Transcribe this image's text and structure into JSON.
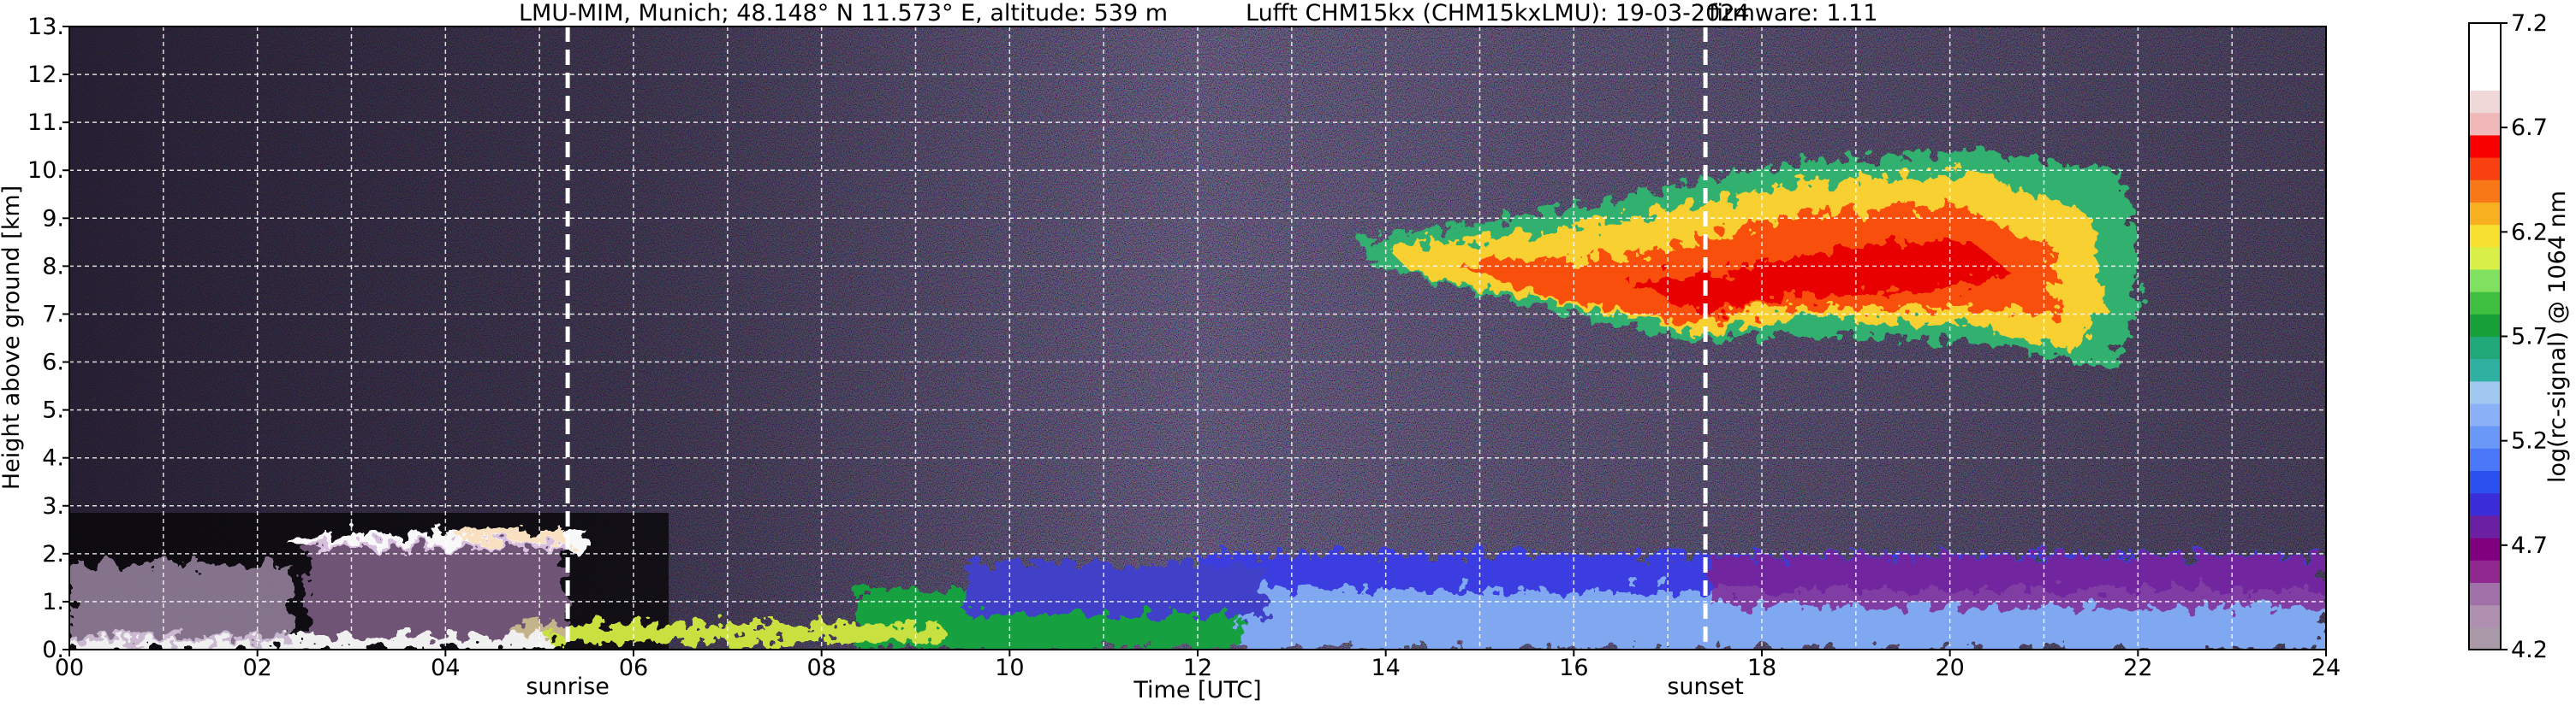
{
  "chart_data": {
    "type": "heatmap",
    "title_segments": [
      "LMU-MIM, Munich; 48.148° N 11.573° E, altitude: 539 m",
      "Lufft CHM15kx (CHM15kxLMU): 19-03-2024",
      "firmware: 1.11"
    ],
    "x_label": "Time [UTC]",
    "y_label": "Height above ground [km]",
    "xlim": [
      0,
      24
    ],
    "ylim": [
      0,
      13
    ],
    "xticks": [
      {
        "value": 0,
        "label": "00"
      },
      {
        "value": 2,
        "label": "02"
      },
      {
        "value": 4,
        "label": "04"
      },
      {
        "value": 6,
        "label": "06"
      },
      {
        "value": 8,
        "label": "08"
      },
      {
        "value": 10,
        "label": "10"
      },
      {
        "value": 12,
        "label": "12"
      },
      14,
      16,
      18,
      20,
      22,
      24
    ],
    "x_minor_ticks": [
      1,
      3,
      5,
      7,
      9,
      11,
      13,
      15,
      17,
      19,
      21,
      23
    ],
    "yticks": [
      {
        "value": 0,
        "label": "0."
      },
      {
        "value": 1,
        "label": "1."
      },
      {
        "value": 2,
        "label": "2."
      },
      {
        "value": 3,
        "label": "3."
      },
      {
        "value": 4,
        "label": "4."
      },
      {
        "value": 5,
        "label": "5."
      },
      {
        "value": 6,
        "label": "6."
      },
      {
        "value": 7,
        "label": "7."
      },
      {
        "value": 8,
        "label": "8."
      },
      {
        "value": 9,
        "label": "9."
      },
      {
        "value": 10,
        "label": "10."
      },
      {
        "value": 11,
        "label": "11."
      },
      {
        "value": 12,
        "label": "12."
      },
      {
        "value": 13,
        "label": "13."
      }
    ],
    "grid": true,
    "annotations": [
      {
        "label": "sunrise",
        "x": 5.3
      },
      {
        "label": "sunset",
        "x": 17.4
      }
    ],
    "colorbar": {
      "label": "log(rc-signal) @ 1064 nm",
      "clim": [
        4.2,
        7.2
      ],
      "ticks": [
        4.2,
        4.7,
        5.2,
        5.7,
        6.2,
        6.7,
        7.2
      ],
      "colors": [
        "#a898a8",
        "#b090b0",
        "#a070a8",
        "#902890",
        "#800080",
        "#6a20a0",
        "#3a2cd8",
        "#2a50f0",
        "#4a78f8",
        "#6a98f8",
        "#8ab0f8",
        "#a0c8f0",
        "#30b0a0",
        "#20a878",
        "#18a038",
        "#40c040",
        "#80e060",
        "#d8f048",
        "#f8e030",
        "#f8b020",
        "#f87818",
        "#f84010",
        "#f80000",
        "#f0b8b8",
        "#f0d8d8",
        "#ffffff",
        "#ffffff",
        "#ffffff"
      ]
    }
  }
}
